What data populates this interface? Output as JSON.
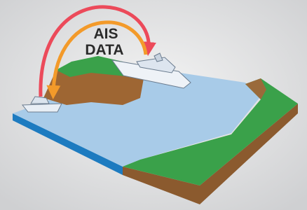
{
  "label": {
    "lines": [
      "AIS",
      "DATA"
    ]
  }
}
